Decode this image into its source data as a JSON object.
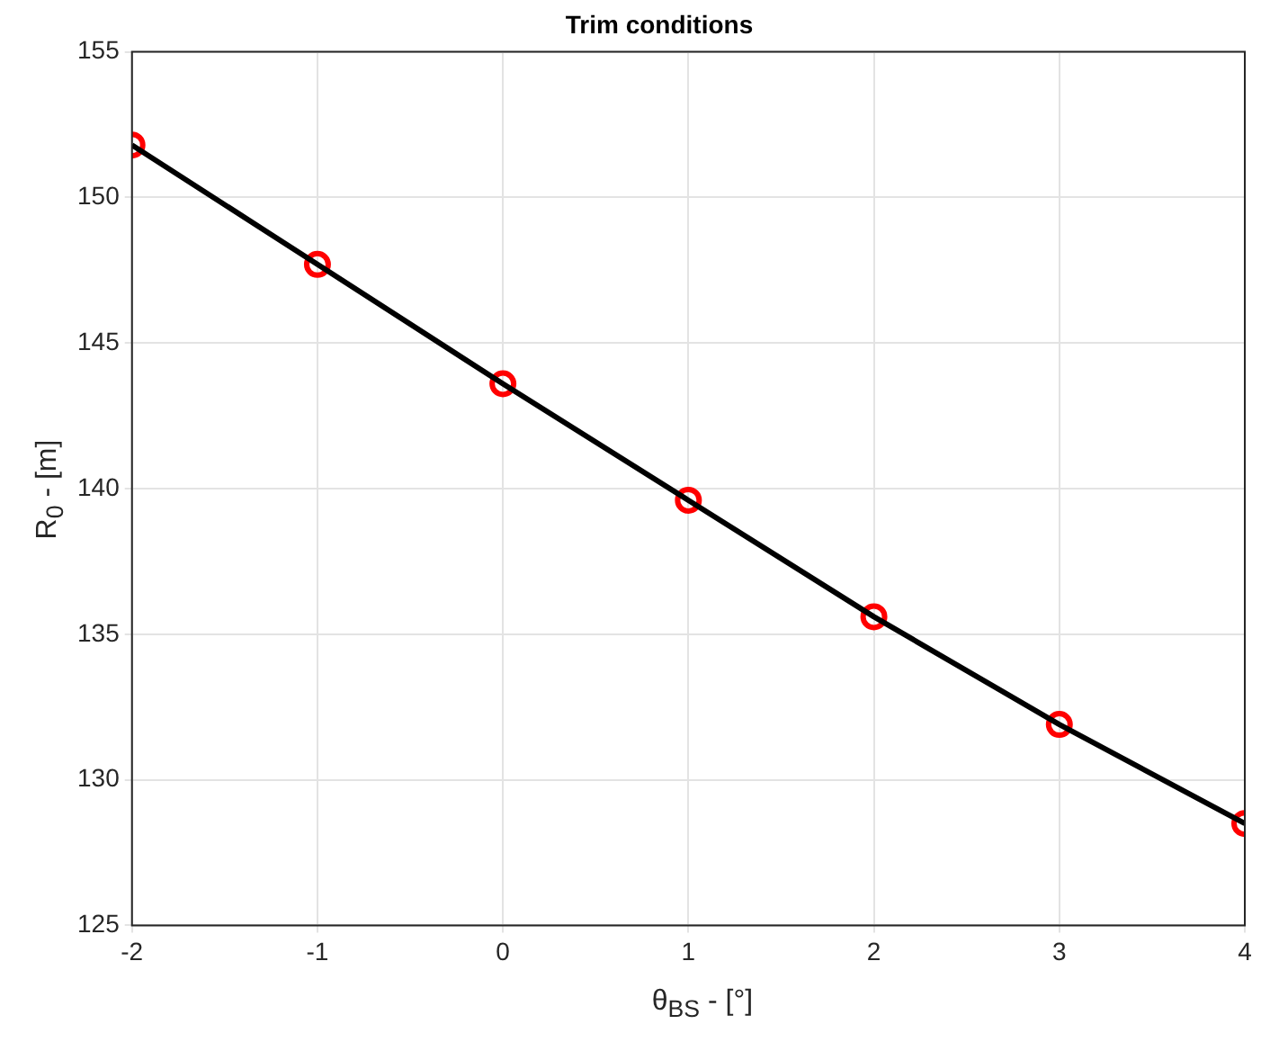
{
  "chart_data": {
    "type": "line",
    "title": "Trim conditions",
    "xlabel": "θ$_{BS}$ - [°]",
    "ylabel": "R$_{0}$ - [m]",
    "x": [
      -2,
      -1,
      0,
      1,
      2,
      3,
      4
    ],
    "series": [
      {
        "type": "line",
        "color": "#000000",
        "marker": "none",
        "values": [
          151.8,
          147.7,
          143.6,
          139.6,
          135.6,
          131.9,
          128.5
        ]
      },
      {
        "type": "scatter",
        "color": "#ff0000",
        "marker": "circle",
        "values": [
          151.8,
          147.7,
          143.6,
          139.6,
          135.6,
          131.9,
          128.5
        ]
      }
    ],
    "xlim": [
      -2,
      4
    ],
    "xticks": [
      -2,
      -1,
      0,
      1,
      2,
      3,
      4
    ],
    "ylim": [
      125,
      155
    ],
    "yticks": [
      125,
      130,
      135,
      140,
      145,
      150,
      155
    ],
    "grid": true,
    "legend": false
  }
}
